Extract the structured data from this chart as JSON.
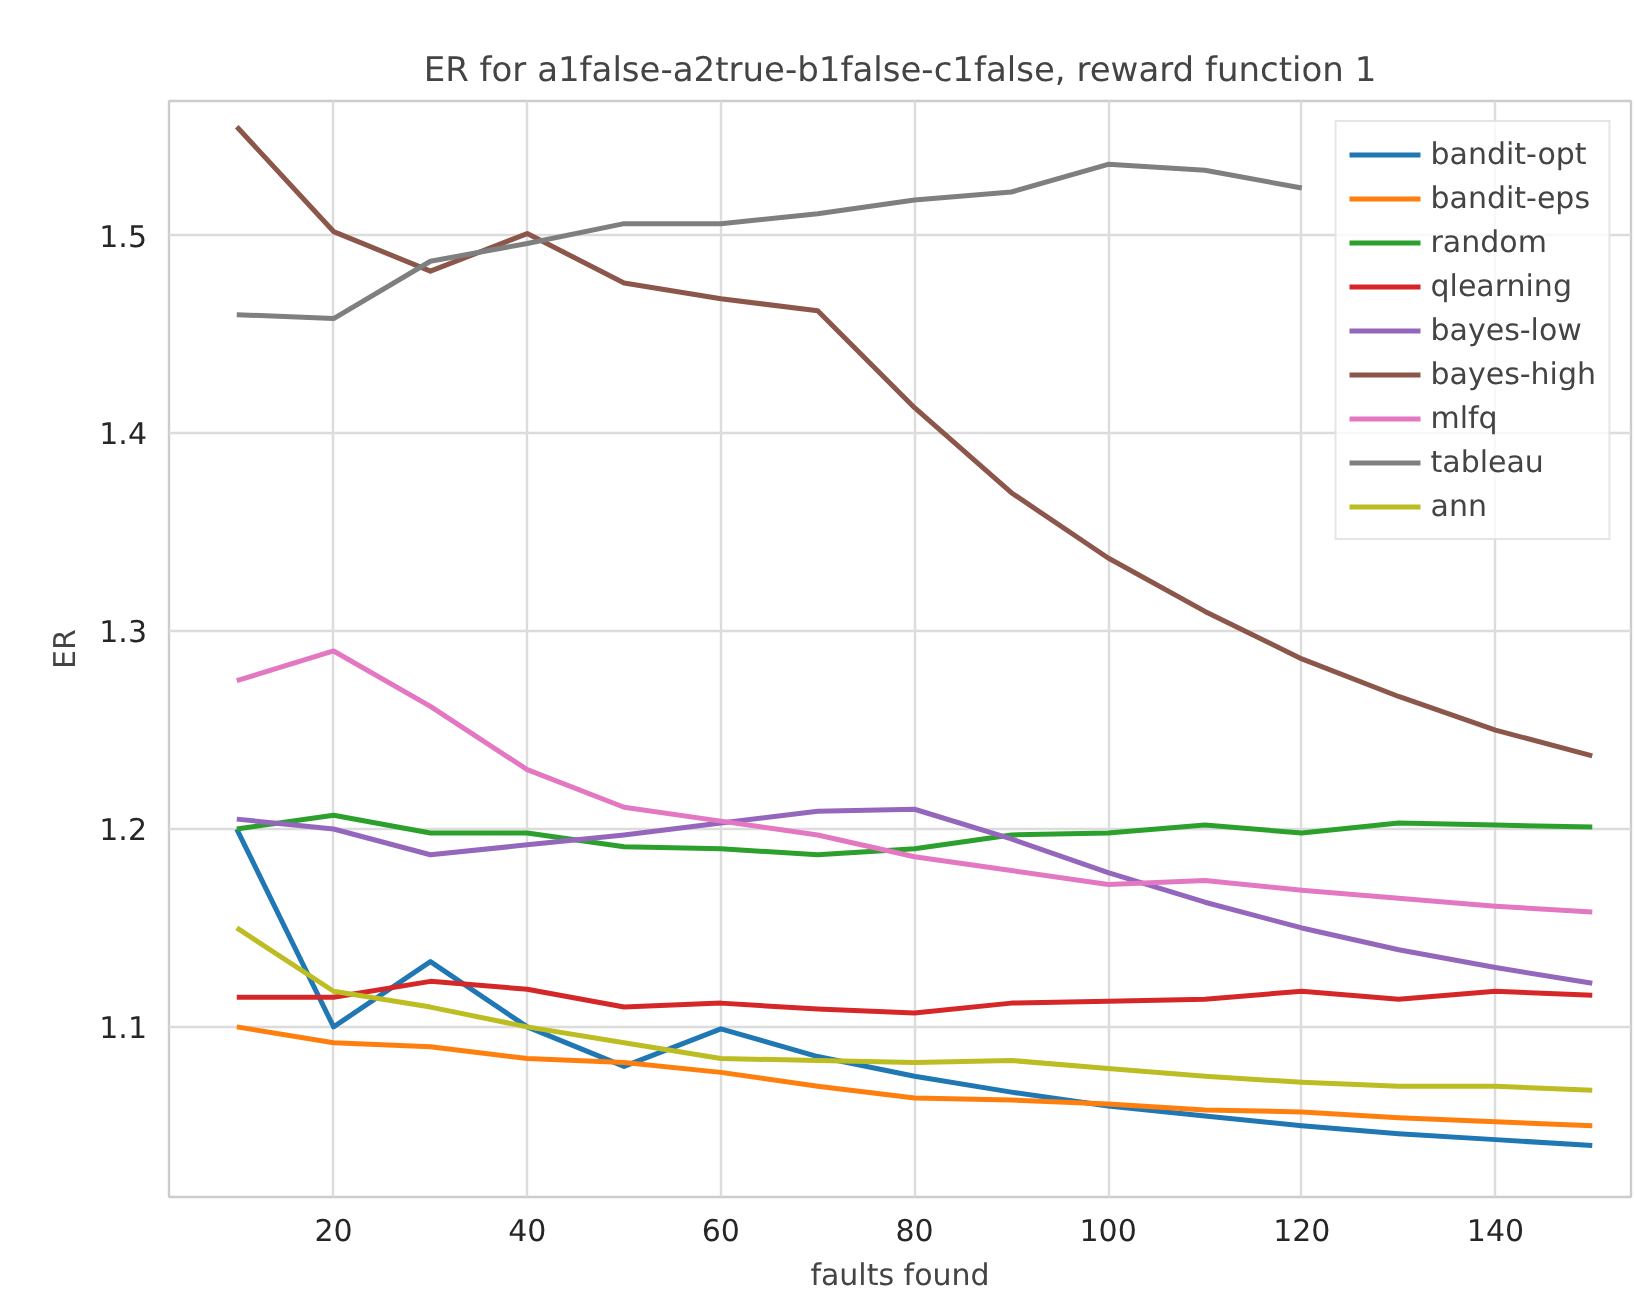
{
  "chart_data": {
    "type": "line",
    "title": "ER for a1false-a2true-b1false-c1false, reward function 1",
    "xlabel": "faults found",
    "ylabel": "ER",
    "x": [
      10,
      20,
      30,
      40,
      50,
      60,
      70,
      80,
      90,
      100,
      110,
      120,
      130,
      140,
      150
    ],
    "series": [
      {
        "name": "bandit-opt",
        "color": "#1f77b4",
        "values": [
          1.2,
          1.1,
          1.133,
          1.1,
          1.08,
          1.099,
          1.085,
          1.075,
          1.067,
          1.06,
          1.055,
          1.05,
          1.046,
          1.043,
          1.04
        ]
      },
      {
        "name": "bandit-eps",
        "color": "#ff7f0e",
        "values": [
          1.1,
          1.092,
          1.09,
          1.084,
          1.082,
          1.077,
          1.07,
          1.064,
          1.063,
          1.061,
          1.058,
          1.057,
          1.054,
          1.052,
          1.05
        ]
      },
      {
        "name": "random",
        "color": "#2ca02c",
        "values": [
          1.2,
          1.207,
          1.198,
          1.198,
          1.191,
          1.19,
          1.187,
          1.19,
          1.197,
          1.198,
          1.202,
          1.198,
          1.203,
          1.202,
          1.201
        ]
      },
      {
        "name": "qlearning",
        "color": "#d62728",
        "values": [
          1.115,
          1.115,
          1.123,
          1.119,
          1.11,
          1.112,
          1.109,
          1.107,
          1.112,
          1.113,
          1.114,
          1.118,
          1.114,
          1.118,
          1.116
        ]
      },
      {
        "name": "bayes-low",
        "color": "#9467bd",
        "values": [
          1.205,
          1.2,
          1.187,
          1.192,
          1.197,
          1.203,
          1.209,
          1.21,
          1.195,
          1.178,
          1.163,
          1.15,
          1.139,
          1.13,
          1.122
        ]
      },
      {
        "name": "bayes-high",
        "color": "#8c564b",
        "values": [
          1.555,
          1.502,
          1.482,
          1.501,
          1.476,
          1.468,
          1.462,
          1.413,
          1.37,
          1.337,
          1.31,
          1.286,
          1.267,
          1.25,
          1.237
        ]
      },
      {
        "name": "mlfq",
        "color": "#e377c2",
        "values": [
          1.275,
          1.29,
          1.262,
          1.23,
          1.211,
          1.204,
          1.197,
          1.186,
          1.179,
          1.172,
          1.174,
          1.169,
          1.165,
          1.161,
          1.158
        ]
      },
      {
        "name": "tableau",
        "color": "#7f7f7f",
        "values": [
          1.46,
          1.458,
          1.487,
          1.496,
          1.506,
          1.506,
          1.511,
          1.518,
          1.522,
          1.536,
          1.533,
          1.524,
          null,
          null,
          null
        ]
      },
      {
        "name": "ann",
        "color": "#bcbd22",
        "values": [
          1.15,
          1.118,
          1.11,
          1.1,
          1.092,
          1.084,
          1.083,
          1.082,
          1.083,
          1.079,
          1.075,
          1.072,
          1.07,
          1.07,
          1.068
        ]
      }
    ],
    "xlim": [
      3,
      154
    ],
    "ylim": [
      1.014,
      1.568
    ],
    "xticks": [
      20,
      40,
      60,
      80,
      100,
      120,
      140
    ],
    "yticks": [
      {
        "value": 1.1,
        "label": "1.1"
      },
      {
        "value": 1.2,
        "label": "1.2"
      },
      {
        "value": 1.3,
        "label": "1.3"
      },
      {
        "value": 1.4,
        "label": "1.4"
      },
      {
        "value": 1.5,
        "label": "1.5"
      }
    ],
    "grid": true,
    "legend": "top right",
    "marker": "none",
    "line_style": "solid"
  }
}
